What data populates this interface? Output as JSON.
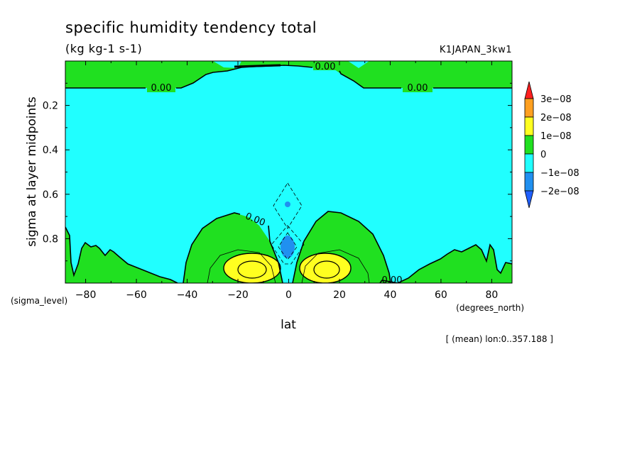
{
  "chart_data": {
    "type": "heatmap",
    "title": "specific humidity tendency total",
    "subtitle": "(kg kg-1 s-1)",
    "dataset": "K1JAPAN_3kw1",
    "xlabel": "lat",
    "ylabel": "sigma at layer midpoints",
    "x_unit": "(degrees_north)",
    "y_unit": "(sigma_level)",
    "note": "[ (mean) lon:0..357.188 ]",
    "xlim": [
      -88,
      88
    ],
    "ylim": [
      1.0,
      0.0
    ],
    "x_ticks": [
      -80,
      -60,
      -40,
      -20,
      0,
      20,
      40,
      60,
      80
    ],
    "y_ticks": [
      0.2,
      0.4,
      0.6,
      0.8
    ],
    "contour_labels": [
      "0.00",
      "0.00",
      "0.00",
      "0.00",
      "0.00"
    ],
    "color_scale": {
      "levels": [
        "3e-08",
        "2e-08",
        "1e-08",
        "0",
        "-1e-08",
        "-2e-08"
      ],
      "colors": [
        "#ff2020",
        "#ffa020",
        "#ffff20",
        "#20e020",
        "#20ffff",
        "#2090f0",
        "#2060ff"
      ],
      "value_colors": {
        "above_3e-08": "#ff2020",
        "2e-08_to_3e-08": "#ffa020",
        "1e-08_to_2e-08": "#ffff20",
        "0_to_1e-08": "#20e020",
        "-1e-08_to_0": "#20ffff",
        "-2e-08_to_-1e-08": "#2090f0",
        "below_-2e-08": "#2060ff"
      }
    },
    "regions": [
      {
        "name": "positive-upper-levels",
        "sign": "positive",
        "sigma_range": [
          0.0,
          0.12
        ]
      },
      {
        "name": "negative-free-troposphere",
        "sign": "negative",
        "sigma_range": [
          0.12,
          0.9
        ]
      },
      {
        "name": "north-yellow-max",
        "sign": "positive",
        "lat_center": 12,
        "sigma_center": 0.93
      },
      {
        "name": "south-yellow-max",
        "sign": "positive",
        "lat_center": -15,
        "sigma_center": 0.93
      },
      {
        "name": "equatorial-negative-min",
        "sign": "negative",
        "lat_center": 0,
        "sigma_center": 0.83
      }
    ],
    "grid": false,
    "legend": "right"
  }
}
